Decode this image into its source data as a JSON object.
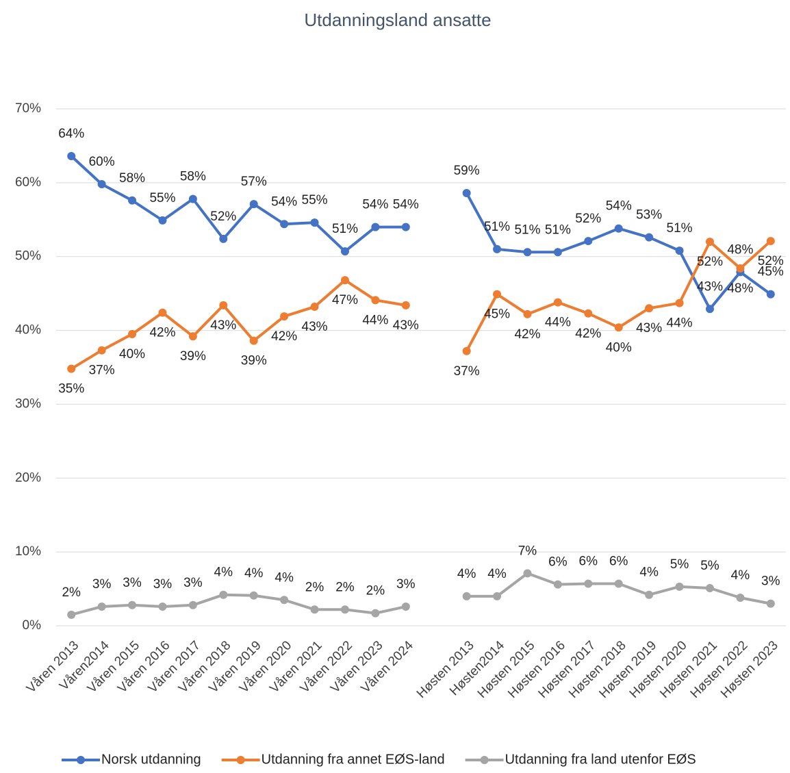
{
  "chart_data": {
    "type": "line",
    "title": "Utdanningsland ansatte",
    "categories": [
      "Våren 2013",
      "Våren2014",
      "Våren 2015",
      "Våren 2016",
      "Våren 2017",
      "Våren 2018",
      "Våren 2019",
      "Våren 2020",
      "Våren 2021",
      "Våren 2022",
      "Våren 2023",
      "Våren 2024",
      null,
      "Høsten 2013",
      "Høsten2014",
      "Høsten 2015",
      "Høsten 2016",
      "Høsten 2017",
      "Høsten 2018",
      "Høsten 2019",
      "Høsten 2020",
      "Høsten 2021",
      "Høsten 2022",
      "Høsten 2023"
    ],
    "series": [
      {
        "name": "Norsk utdanning",
        "color": "#4472c4",
        "values": [
          63.6,
          59.8,
          57.6,
          54.9,
          57.8,
          52.4,
          57.1,
          54.4,
          54.6,
          50.7,
          54.0,
          54.0,
          null,
          58.6,
          51.0,
          50.6,
          50.6,
          52.1,
          53.8,
          52.6,
          50.8,
          42.9,
          47.9,
          44.9
        ],
        "value_labels": [
          "64%",
          "60%",
          "58%",
          "55%",
          "58%",
          "52%",
          "57%",
          "54%",
          "55%",
          "51%",
          "54%",
          "54%",
          null,
          "59%",
          "51%",
          "51%",
          "51%",
          "52%",
          "54%",
          "53%",
          "51%",
          "43%",
          "48%",
          "45%"
        ]
      },
      {
        "name": "Utdanning fra annet EØS-land",
        "color": "#ed7d31",
        "values": [
          34.8,
          37.3,
          39.5,
          42.4,
          39.2,
          43.4,
          38.6,
          41.9,
          43.2,
          46.8,
          44.1,
          43.4,
          null,
          37.2,
          44.9,
          42.2,
          43.8,
          42.3,
          40.4,
          43.0,
          43.7,
          52.0,
          48.4,
          52.1
        ],
        "value_labels": [
          "35%",
          "37%",
          "40%",
          "42%",
          "39%",
          "43%",
          "39%",
          "42%",
          "43%",
          "47%",
          "44%",
          "43%",
          null,
          "37%",
          "45%",
          "42%",
          "44%",
          "42%",
          "40%",
          "43%",
          "44%",
          "52%",
          "48%",
          "52%"
        ]
      },
      {
        "name": "Utdanning fra land utenfor EØS",
        "color": "#a5a5a5",
        "values": [
          1.5,
          2.6,
          2.8,
          2.6,
          2.8,
          4.2,
          4.1,
          3.5,
          2.2,
          2.2,
          1.7,
          2.6,
          null,
          4.0,
          4.0,
          7.1,
          5.6,
          5.7,
          5.7,
          4.2,
          5.3,
          5.1,
          3.8,
          3.0
        ],
        "value_labels": [
          "2%",
          "3%",
          "3%",
          "3%",
          "3%",
          "4%",
          "4%",
          "4%",
          "2%",
          "2%",
          "2%",
          "3%",
          null,
          "4%",
          "4%",
          "7%",
          "6%",
          "6%",
          "6%",
          "4%",
          "5%",
          "5%",
          "4%",
          "3%"
        ]
      }
    ],
    "ylim": [
      0,
      70
    ],
    "yticks": [
      {
        "value": 0,
        "label": "0%"
      },
      {
        "value": 10,
        "label": "10%"
      },
      {
        "value": 20,
        "label": "20%"
      },
      {
        "value": 30,
        "label": "30%"
      },
      {
        "value": 40,
        "label": "40%"
      },
      {
        "value": 50,
        "label": "50%"
      },
      {
        "value": 60,
        "label": "60%"
      },
      {
        "value": 70,
        "label": "70%"
      }
    ],
    "grid": true,
    "legend": "bottom"
  }
}
